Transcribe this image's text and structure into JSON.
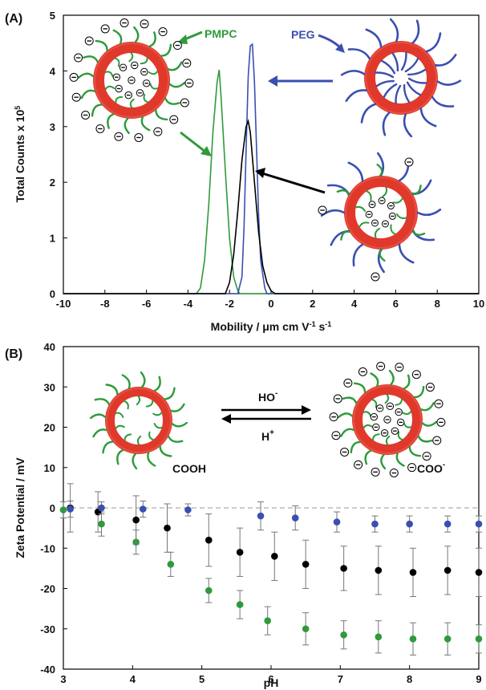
{
  "panels": {
    "a_label": "(A)",
    "b_label": "(B)"
  },
  "chart_data": [
    {
      "type": "line",
      "panel": "A",
      "xlabel_main": "Mobility / μm cm V",
      "xlabel_sup1": "-1",
      "xlabel_mid": " s",
      "xlabel_sup2": "-1",
      "ylabel_main": "Total Counts x 10",
      "ylabel_sup": "5",
      "xlim": [
        -10,
        10
      ],
      "ylim": [
        0,
        5
      ],
      "xticks": [
        "-10",
        "-8",
        "-6",
        "-4",
        "-2",
        "0",
        "2",
        "4",
        "6",
        "8",
        "10"
      ],
      "yticks": [
        "0",
        "1",
        "2",
        "3",
        "4",
        "5"
      ],
      "annotations": {
        "pmpc": "PMPC",
        "peg": "PEG"
      },
      "colors": {
        "pmpc": "#2e9a3c",
        "peg": "#3b4fb0",
        "mixed": "#000000"
      },
      "series": [
        {
          "key": "pmpc",
          "x": [
            -3.6,
            -3.4,
            -3.2,
            -3.0,
            -2.8,
            -2.6,
            -2.5,
            -2.4,
            -2.2,
            -2.0,
            -1.8,
            -1.6,
            -1.5
          ],
          "y": [
            0,
            0.1,
            0.6,
            1.6,
            2.9,
            3.8,
            4.02,
            3.5,
            2.2,
            1.0,
            0.3,
            0.05,
            0
          ]
        },
        {
          "key": "peg",
          "x": [
            -1.6,
            -1.4,
            -1.3,
            -1.2,
            -1.1,
            -1.0,
            -0.9,
            -0.8,
            -0.7,
            -0.6,
            -0.5,
            -0.3,
            -0.2
          ],
          "y": [
            0,
            0.3,
            1.2,
            2.6,
            3.9,
            4.45,
            4.48,
            3.8,
            2.6,
            1.4,
            0.6,
            0.1,
            0
          ]
        },
        {
          "key": "mixed",
          "x": [
            -2.2,
            -2.0,
            -1.8,
            -1.6,
            -1.4,
            -1.2,
            -1.1,
            -1.0,
            -0.8,
            -0.6,
            -0.4,
            -0.2,
            0.0,
            0.2
          ],
          "y": [
            0,
            0.2,
            0.7,
            1.5,
            2.4,
            3.0,
            3.1,
            2.9,
            2.0,
            1.1,
            0.5,
            0.2,
            0.05,
            0
          ]
        }
      ]
    },
    {
      "type": "scatter",
      "panel": "B",
      "xlabel": "pH",
      "ylabel": "Zeta Potential / mV",
      "xlim": [
        3,
        9
      ],
      "ylim": [
        -40,
        40
      ],
      "xticks": [
        "3",
        "4",
        "5",
        "6",
        "7",
        "8",
        "9"
      ],
      "yticks": [
        "-40",
        "-30",
        "-20",
        "-10",
        "0",
        "10",
        "20",
        "30",
        "40"
      ],
      "reference_line_y": 0,
      "reaction": {
        "left_label": "COOH",
        "right_label": "COO",
        "right_sup": "-",
        "top": "HO",
        "top_sup": "-",
        "bottom": "H",
        "bottom_sup": "+"
      },
      "colors": {
        "pmpc": "#2e9a3c",
        "peg": "#3b4fb0",
        "mixed": "#000000"
      },
      "series": [
        {
          "key": "pmpc",
          "x": [
            3.0,
            3.55,
            4.05,
            4.55,
            5.1,
            5.55,
            5.95,
            6.5,
            7.05,
            7.55,
            8.05,
            8.55,
            9.0
          ],
          "y": [
            -0.5,
            -4,
            -8.5,
            -14,
            -20.5,
            -24,
            -28,
            -30,
            -31.5,
            -32,
            -32.5,
            -32.5,
            -32.5
          ],
          "err": [
            2,
            3,
            3,
            3,
            3,
            3.5,
            3.5,
            4,
            3.5,
            4,
            4,
            4,
            3.5
          ]
        },
        {
          "key": "mixed",
          "x": [
            3.1,
            3.5,
            4.05,
            4.5,
            5.1,
            5.55,
            6.05,
            6.5,
            7.05,
            7.55,
            8.05,
            8.55,
            9.0
          ],
          "y": [
            0,
            -1,
            -3,
            -5,
            -8,
            -11,
            -12,
            -14,
            -15,
            -15.5,
            -16,
            -15.5,
            -16
          ],
          "err": [
            6,
            5,
            6,
            6,
            6.5,
            6,
            6,
            6,
            5.5,
            6,
            6,
            6,
            6
          ]
        },
        {
          "key": "peg",
          "x": [
            3.1,
            3.55,
            4.15,
            4.8,
            5.85,
            6.35,
            6.95,
            7.5,
            8.0,
            8.55,
            9.0
          ],
          "y": [
            -0.3,
            0,
            -0.3,
            -0.5,
            -2,
            -2.5,
            -3.5,
            -4,
            -4,
            -4,
            -4
          ],
          "err": [
            2,
            1.5,
            2,
            1.5,
            3.5,
            3,
            2.5,
            2,
            2,
            2,
            2
          ]
        }
      ]
    }
  ]
}
